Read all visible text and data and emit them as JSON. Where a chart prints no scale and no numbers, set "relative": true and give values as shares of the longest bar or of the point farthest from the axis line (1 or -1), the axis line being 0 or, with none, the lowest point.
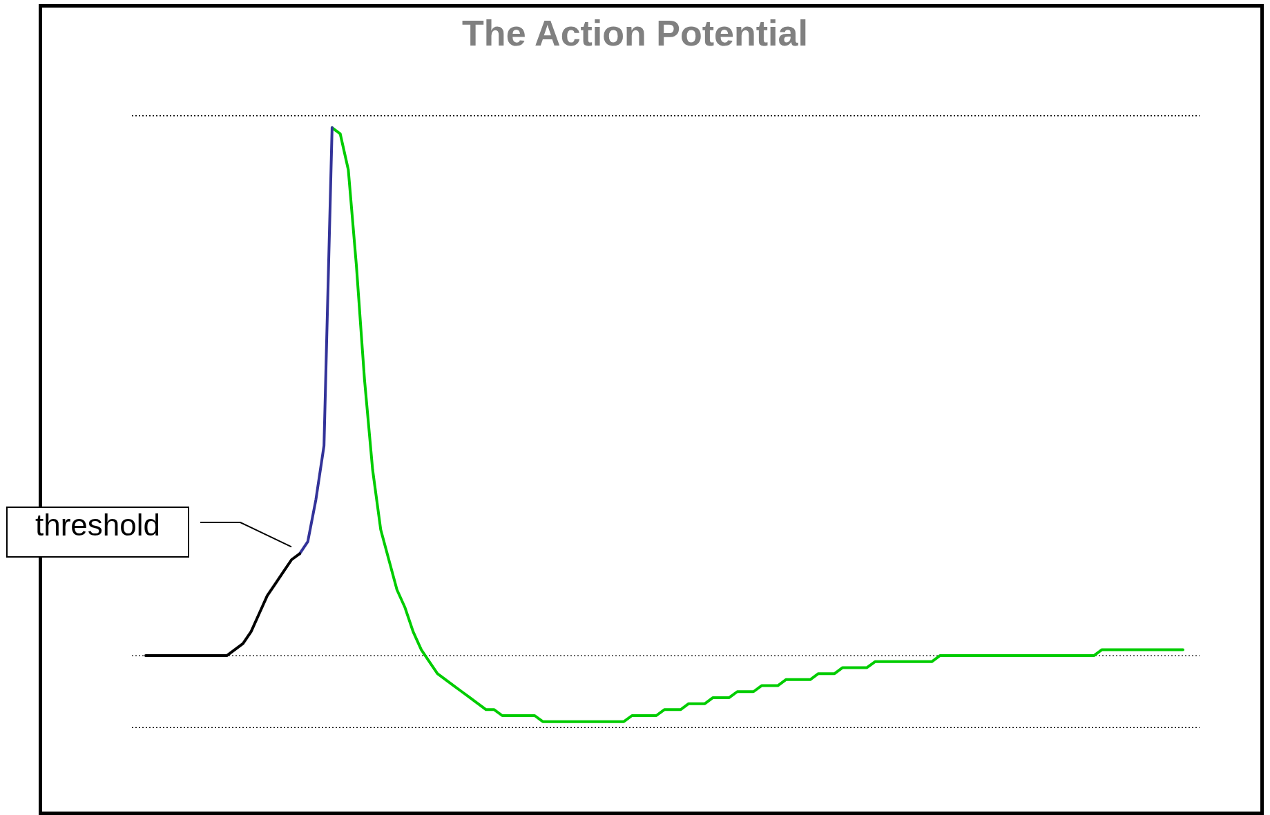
{
  "chart_data": {
    "type": "line",
    "title": "The Action Potential",
    "relative": true,
    "legend": false,
    "marker": "none",
    "categories": [
      null,
      null,
      null,
      null,
      null,
      null,
      null,
      null,
      null,
      null,
      null,
      null,
      null,
      null,
      null,
      null,
      null,
      null,
      null,
      null,
      null,
      null,
      null,
      null,
      null,
      null,
      null,
      null,
      null,
      null,
      null,
      null,
      null,
      null,
      null,
      null,
      null,
      null,
      null,
      null,
      null,
      null,
      null,
      null,
      null,
      null,
      null,
      null,
      null,
      null,
      null,
      null,
      null,
      null,
      null,
      null,
      null,
      null,
      null,
      null,
      null,
      null,
      null,
      null,
      null,
      null,
      null,
      null,
      null,
      null,
      null,
      null,
      null,
      null,
      null,
      null,
      null,
      null,
      null,
      null,
      null,
      null,
      null,
      null,
      null,
      null,
      null,
      null,
      null,
      null,
      null,
      null,
      null,
      null,
      null,
      null,
      null,
      null,
      null,
      null,
      null,
      null,
      null,
      null,
      null,
      null,
      null,
      null,
      null,
      null,
      null,
      null,
      null,
      null,
      null,
      null,
      null,
      null,
      null,
      null,
      null,
      null,
      null,
      null,
      null,
      null,
      null,
      null,
      null
    ],
    "series": [
      {
        "color": "#000000",
        "values": [
          0.12,
          0.12,
          0.12,
          0.12,
          0.12,
          0.12,
          0.12,
          0.12,
          0.12,
          0.12,
          0.12,
          0.13,
          0.14,
          0.16,
          0.19,
          0.22,
          0.24,
          0.26,
          0.28,
          0.29,
          null,
          null,
          null,
          null,
          null,
          null,
          null,
          null,
          null,
          null,
          null,
          null,
          null,
          null,
          null,
          null,
          null,
          null,
          null,
          null,
          null,
          null,
          null,
          null,
          null,
          null,
          null,
          null,
          null,
          null,
          null,
          null,
          null,
          null,
          null,
          null,
          null,
          null,
          null,
          null,
          null,
          null,
          null,
          null,
          null,
          null,
          null,
          null,
          null,
          null,
          null,
          null,
          null,
          null,
          null,
          null,
          null,
          null,
          null,
          null,
          null,
          null,
          null,
          null,
          null,
          null,
          null,
          null,
          null,
          null,
          null,
          null,
          null,
          null,
          null,
          null,
          null,
          null,
          null,
          null,
          null,
          null,
          null,
          null,
          null,
          null,
          null,
          null,
          null,
          null,
          null,
          null,
          null,
          null,
          null,
          null,
          null,
          null,
          null,
          null,
          null,
          null,
          null,
          null,
          null,
          null,
          null,
          null,
          null
        ]
      },
      {
        "color": "#333399",
        "values": [
          null,
          null,
          null,
          null,
          null,
          null,
          null,
          null,
          null,
          null,
          null,
          null,
          null,
          null,
          null,
          null,
          null,
          null,
          null,
          0.29,
          0.31,
          0.38,
          0.47,
          1.0,
          null,
          null,
          null,
          null,
          null,
          null,
          null,
          null,
          null,
          null,
          null,
          null,
          null,
          null,
          null,
          null,
          null,
          null,
          null,
          null,
          null,
          null,
          null,
          null,
          null,
          null,
          null,
          null,
          null,
          null,
          null,
          null,
          null,
          null,
          null,
          null,
          null,
          null,
          null,
          null,
          null,
          null,
          null,
          null,
          null,
          null,
          null,
          null,
          null,
          null,
          null,
          null,
          null,
          null,
          null,
          null,
          null,
          null,
          null,
          null,
          null,
          null,
          null,
          null,
          null,
          null,
          null,
          null,
          null,
          null,
          null,
          null,
          null,
          null,
          null,
          null,
          null,
          null,
          null,
          null,
          null,
          null,
          null,
          null,
          null,
          null,
          null,
          null,
          null,
          null,
          null,
          null,
          null,
          null,
          null,
          null,
          null,
          null,
          null,
          null,
          null,
          null,
          null,
          null,
          null
        ]
      },
      {
        "color": "#00cc00",
        "values": [
          null,
          null,
          null,
          null,
          null,
          null,
          null,
          null,
          null,
          null,
          null,
          null,
          null,
          null,
          null,
          null,
          null,
          null,
          null,
          null,
          null,
          null,
          null,
          1.0,
          0.99,
          0.93,
          0.77,
          0.58,
          0.43,
          0.33,
          0.28,
          0.23,
          0.2,
          0.16,
          0.13,
          0.11,
          0.09,
          0.08,
          0.07,
          0.06,
          0.05,
          0.04,
          0.03,
          0.03,
          0.02,
          0.02,
          0.02,
          0.02,
          0.02,
          0.01,
          0.01,
          0.01,
          0.01,
          0.01,
          0.01,
          0.01,
          0.01,
          0.01,
          0.01,
          0.01,
          0.02,
          0.02,
          0.02,
          0.02,
          0.03,
          0.03,
          0.03,
          0.04,
          0.04,
          0.04,
          0.05,
          0.05,
          0.05,
          0.06,
          0.06,
          0.06,
          0.07,
          0.07,
          0.07,
          0.08,
          0.08,
          0.08,
          0.08,
          0.09,
          0.09,
          0.09,
          0.1,
          0.1,
          0.1,
          0.1,
          0.11,
          0.11,
          0.11,
          0.11,
          0.11,
          0.11,
          0.11,
          0.11,
          0.12,
          0.12,
          0.12,
          0.12,
          0.12,
          0.12,
          0.12,
          0.12,
          0.12,
          0.12,
          0.12,
          0.12,
          0.12,
          0.12,
          0.12,
          0.12,
          0.12,
          0.12,
          0.12,
          0.12,
          0.13,
          0.13,
          0.13,
          0.13,
          0.13,
          0.13,
          0.13,
          0.13,
          0.13,
          0.13,
          0.13
        ]
      }
    ],
    "ref_lines": [
      {
        "axis": "y",
        "value": 1.02,
        "color": "#000000",
        "line_style": "dotted"
      },
      {
        "axis": "y",
        "value": 0.12,
        "color": "#000000",
        "line_style": "dotted"
      },
      {
        "axis": "y",
        "value": 0,
        "color": "#000000",
        "line_style": "dotted"
      }
    ],
    "annotations": [
      "threshold"
    ]
  }
}
